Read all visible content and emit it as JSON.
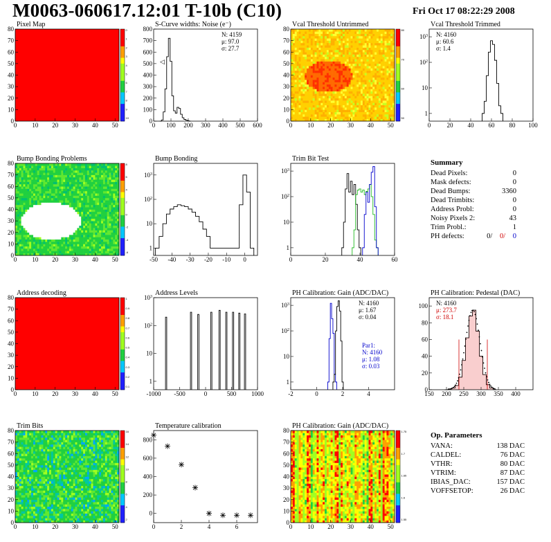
{
  "header": {
    "title": "M0063-060617.12:01 T-10b (C10)",
    "date": "Fri Oct 17 08:22:29 2008"
  },
  "colors": {
    "red": "#ff0000",
    "green": "#22bb22",
    "blue": "#0000cc",
    "black": "#000000",
    "orange": "#ff8800",
    "white": "#ffffff"
  },
  "chart_data": [
    {
      "id": "pixel-map",
      "type": "heatmap",
      "title": "Pixel Map",
      "xlim": [
        0,
        52
      ],
      "ylim": [
        0,
        80
      ],
      "xticks": [
        0,
        10,
        20,
        30,
        40,
        50
      ],
      "yticks": [
        0,
        10,
        20,
        30,
        40,
        50,
        60,
        70,
        80
      ],
      "fill": "uniform-max",
      "zscale_ticks": [
        "0",
        "1",
        "2",
        "3",
        "4",
        "5",
        "6",
        "7",
        "8",
        "9",
        "10"
      ]
    },
    {
      "id": "scurve",
      "type": "line",
      "title": "S-Curve widths: Noise (e⁻)",
      "xlim": [
        0,
        600
      ],
      "ylim": [
        0,
        800
      ],
      "xticks": [
        0,
        100,
        200,
        300,
        400,
        500,
        600
      ],
      "yticks": [
        0,
        100,
        200,
        300,
        400,
        500,
        600,
        700,
        800
      ],
      "series": [
        {
          "x": [
            40,
            50,
            60,
            70,
            80,
            90,
            100,
            110,
            120,
            130,
            140,
            150,
            160,
            170,
            180,
            190,
            200,
            210
          ],
          "y": [
            0,
            10,
            80,
            280,
            560,
            720,
            520,
            220,
            90,
            70,
            120,
            110,
            60,
            30,
            15,
            8,
            3,
            0
          ]
        }
      ],
      "stats": [
        "N: 4159",
        "μ: 97.0",
        "σ: 27.7"
      ],
      "annotation": "◁"
    },
    {
      "id": "vcal-untrimmed",
      "type": "heatmap",
      "title": "Vcal Threshold Untrimmed",
      "xlim": [
        0,
        52
      ],
      "ylim": [
        0,
        80
      ],
      "xticks": [
        0,
        10,
        20,
        30,
        40,
        50
      ],
      "yticks": [
        0,
        10,
        20,
        30,
        40,
        50,
        60,
        70,
        80
      ],
      "fill": "yellow-with-orange-blob",
      "zscale_ticks": [
        "80",
        "70",
        "60",
        "50"
      ]
    },
    {
      "id": "vcal-trimmed",
      "type": "line",
      "title": "Vcal Threshold Trimmed",
      "yscale": "log",
      "xlim": [
        0,
        100
      ],
      "ylim": [
        0.5,
        2000
      ],
      "xticks": [
        0,
        20,
        40,
        60,
        80,
        100
      ],
      "yticks": [
        1,
        10,
        100,
        1000
      ],
      "series": [
        {
          "x": [
            52,
            54,
            56,
            58,
            60,
            62,
            64,
            66,
            68,
            70
          ],
          "y": [
            1,
            3,
            30,
            250,
            700,
            500,
            120,
            15,
            2,
            1
          ]
        }
      ],
      "stats": [
        "N: 4160",
        "μ: 60.6",
        "σ: 1.4"
      ]
    },
    {
      "id": "bump-map",
      "type": "heatmap",
      "title": "Bump Bonding Problems",
      "xlim": [
        0,
        52
      ],
      "ylim": [
        0,
        80
      ],
      "xticks": [
        0,
        10,
        20,
        30,
        40,
        50
      ],
      "yticks": [
        0,
        10,
        20,
        30,
        40,
        50,
        60,
        70,
        80
      ],
      "fill": "green-with-white-blob",
      "zscale_ticks": [
        "8",
        "6",
        "4",
        "2",
        "0",
        "-2",
        "-4",
        "-6"
      ]
    },
    {
      "id": "bump-hist",
      "type": "line",
      "title": "Bump Bonding",
      "yscale": "log",
      "xlim": [
        -50,
        7
      ],
      "ylim": [
        0.5,
        3000
      ],
      "xticks": [
        -50,
        -40,
        -30,
        -20,
        -10,
        0
      ],
      "yticks": [
        1,
        10,
        100,
        1000
      ],
      "series": [
        {
          "x": [
            -48,
            -46,
            -44,
            -42,
            -40,
            -38,
            -36,
            -34,
            -32,
            -30,
            -28,
            -26,
            -24,
            -22,
            -20,
            -18,
            -4,
            -2,
            0,
            2,
            4
          ],
          "y": [
            1,
            3,
            10,
            25,
            40,
            50,
            60,
            55,
            50,
            40,
            30,
            20,
            12,
            6,
            3,
            1,
            1,
            60,
            1000,
            200,
            1
          ]
        }
      ]
    },
    {
      "id": "trim-bit-test",
      "type": "line",
      "title": "Trim Bit Test",
      "yscale": "log",
      "xlim": [
        0,
        60
      ],
      "ylim": [
        0.5,
        2000
      ],
      "xticks": [
        0,
        20,
        40,
        60
      ],
      "yticks": [
        1,
        10,
        100,
        1000
      ],
      "series": [
        {
          "color": "black",
          "x": [
            30,
            31,
            32,
            33,
            34,
            35,
            36,
            37,
            38,
            39,
            40
          ],
          "y": [
            1,
            10,
            200,
            800,
            150,
            400,
            120,
            300,
            50,
            5,
            1
          ]
        },
        {
          "color": "green",
          "x": [
            36,
            37,
            38,
            39,
            40,
            41,
            42,
            43,
            44,
            45,
            46,
            47,
            48,
            49,
            50
          ],
          "y": [
            1,
            5,
            120,
            180,
            200,
            150,
            180,
            120,
            160,
            200,
            300,
            100,
            20,
            2,
            1
          ]
        },
        {
          "color": "blue",
          "x": [
            42,
            43,
            44,
            45,
            46,
            47,
            48,
            49,
            50
          ],
          "y": [
            1,
            20,
            150,
            60,
            300,
            900,
            1500,
            40,
            1
          ]
        }
      ]
    },
    {
      "id": "address-decoding",
      "type": "heatmap",
      "title": "Address decoding",
      "xlim": [
        0,
        52
      ],
      "ylim": [
        0,
        80
      ],
      "xticks": [
        0,
        10,
        20,
        30,
        40,
        50
      ],
      "yticks": [
        0,
        10,
        20,
        30,
        40,
        50,
        60,
        70,
        80
      ],
      "fill": "uniform-max",
      "zscale_ticks": [
        "1",
        "0.9",
        "0.8",
        "0.7",
        "0.6",
        "0.5",
        "0.4",
        "0.3",
        "0.2",
        "0.1"
      ]
    },
    {
      "id": "address-levels",
      "type": "bar",
      "title": "Address Levels",
      "yscale": "log",
      "xlim": [
        -1000,
        1000
      ],
      "ylim": [
        0.5,
        1000
      ],
      "xticks": [
        -1000,
        -500,
        0,
        500,
        1000
      ],
      "yticks": [
        1,
        10,
        100,
        1000
      ],
      "peaks": [
        -760,
        -280,
        -140,
        110,
        270,
        400,
        530,
        650,
        760
      ],
      "peak_heights": [
        200,
        300,
        250,
        300,
        350,
        300,
        300,
        280,
        260
      ]
    },
    {
      "id": "ph-gain-hist",
      "type": "line",
      "title": "PH Calibration: Gain (ADC/DAC)",
      "yscale": "log",
      "xlim": [
        -2,
        6
      ],
      "ylim": [
        0.5,
        2000
      ],
      "xticks": [
        -2,
        0,
        2,
        4
      ],
      "yticks": [
        1,
        10,
        100,
        1000
      ],
      "series": [
        {
          "color": "blue",
          "x": [
            0.9,
            1.0,
            1.1,
            1.2,
            1.3,
            1.4,
            1.5
          ],
          "y": [
            1,
            50,
            1200,
            300,
            80,
            2,
            1
          ]
        },
        {
          "color": "black",
          "x": [
            1.3,
            1.4,
            1.5,
            1.6,
            1.7,
            1.8,
            1.9,
            2.0
          ],
          "y": [
            1,
            2,
            100,
            900,
            1500,
            600,
            40,
            1
          ]
        }
      ],
      "stats": [
        "N: 4160",
        "μ: 1.67",
        "σ: 0.04"
      ],
      "fit_stats": [
        "Par1:",
        "N: 4160",
        "μ: 1.08",
        "σ: 0.03"
      ]
    },
    {
      "id": "ph-pedestal",
      "type": "line",
      "title": "PH Calibration: Pedestal (DAC)",
      "xlim": [
        150,
        450
      ],
      "ylim": [
        0,
        110
      ],
      "xticks": [
        150,
        200,
        250,
        300,
        350,
        400
      ],
      "yticks": [
        0,
        20,
        40,
        60,
        80,
        100
      ],
      "series": [
        {
          "x": [
            200,
            210,
            220,
            230,
            240,
            250,
            260,
            270,
            280,
            290,
            300,
            310,
            320,
            330,
            340
          ],
          "y": [
            0,
            1,
            2,
            5,
            15,
            35,
            62,
            88,
            95,
            70,
            40,
            18,
            6,
            2,
            0
          ]
        }
      ],
      "markers": [
        236,
        318
      ],
      "stats": [
        "N: 4160",
        "μ: 273.7",
        "σ: 18.1"
      ]
    },
    {
      "id": "trim-bits",
      "type": "heatmap",
      "title": "Trim Bits",
      "xlim": [
        0,
        52
      ],
      "ylim": [
        0,
        80
      ],
      "xticks": [
        0,
        10,
        20,
        30,
        40,
        50
      ],
      "yticks": [
        0,
        10,
        20,
        30,
        40,
        50,
        60,
        70,
        80
      ],
      "fill": "green-noise",
      "zscale_ticks": [
        "16",
        "14",
        "12",
        "10",
        "8",
        "6",
        "4",
        "2"
      ]
    },
    {
      "id": "temp-calib",
      "type": "scatter",
      "title": "Temperature calibration",
      "xlim": [
        0,
        7.5
      ],
      "ylim": [
        -100,
        900
      ],
      "xticks": [
        0,
        2,
        4,
        6
      ],
      "yticks": [
        0,
        200,
        400,
        600,
        800
      ],
      "series": [
        {
          "x": [
            0,
            1,
            2,
            3,
            4,
            5,
            6,
            7
          ],
          "y": [
            850,
            730,
            530,
            280,
            0,
            -20,
            -20,
            -20
          ]
        }
      ]
    },
    {
      "id": "ph-gain-map",
      "type": "heatmap",
      "title": "PH Calibration: Gain (ADC/DAC)",
      "xlim": [
        0,
        52
      ],
      "ylim": [
        0,
        80
      ],
      "xticks": [
        0,
        10,
        20,
        30,
        40,
        50
      ],
      "yticks": [
        0,
        10,
        20,
        30,
        40,
        50,
        60,
        70,
        80
      ],
      "fill": "gain-stripes",
      "zscale_ticks": [
        "1.75",
        "1.7",
        "1.65",
        "1.6",
        "1.55"
      ]
    }
  ],
  "summary": {
    "title": "Summary",
    "rows": [
      {
        "label": "Dead Pixels:",
        "value": "0"
      },
      {
        "label": "Mask defects:",
        "value": "0"
      },
      {
        "label": "Dead Bumps:",
        "value": "3360"
      },
      {
        "label": "Dead Trimbits:",
        "value": "0"
      },
      {
        "label": "Address Probl:",
        "value": "0"
      },
      {
        "label": "Noisy Pixels 2:",
        "value": "43"
      },
      {
        "label": "Trim Probl.:",
        "value": "1"
      }
    ],
    "ph_label": "PH defects:",
    "ph_values": [
      "0/",
      "0/",
      "0"
    ]
  },
  "op_params": {
    "title": "Op. Parameters",
    "rows": [
      {
        "label": "VANA:",
        "value": "138 DAC"
      },
      {
        "label": "CALDEL:",
        "value": "76 DAC"
      },
      {
        "label": "VTHR:",
        "value": "80 DAC"
      },
      {
        "label": "VTRIM:",
        "value": "87 DAC"
      },
      {
        "label": "IBIAS_DAC:",
        "value": "157 DAC"
      },
      {
        "label": "VOFFSETOP:",
        "value": "26 DAC"
      }
    ]
  }
}
